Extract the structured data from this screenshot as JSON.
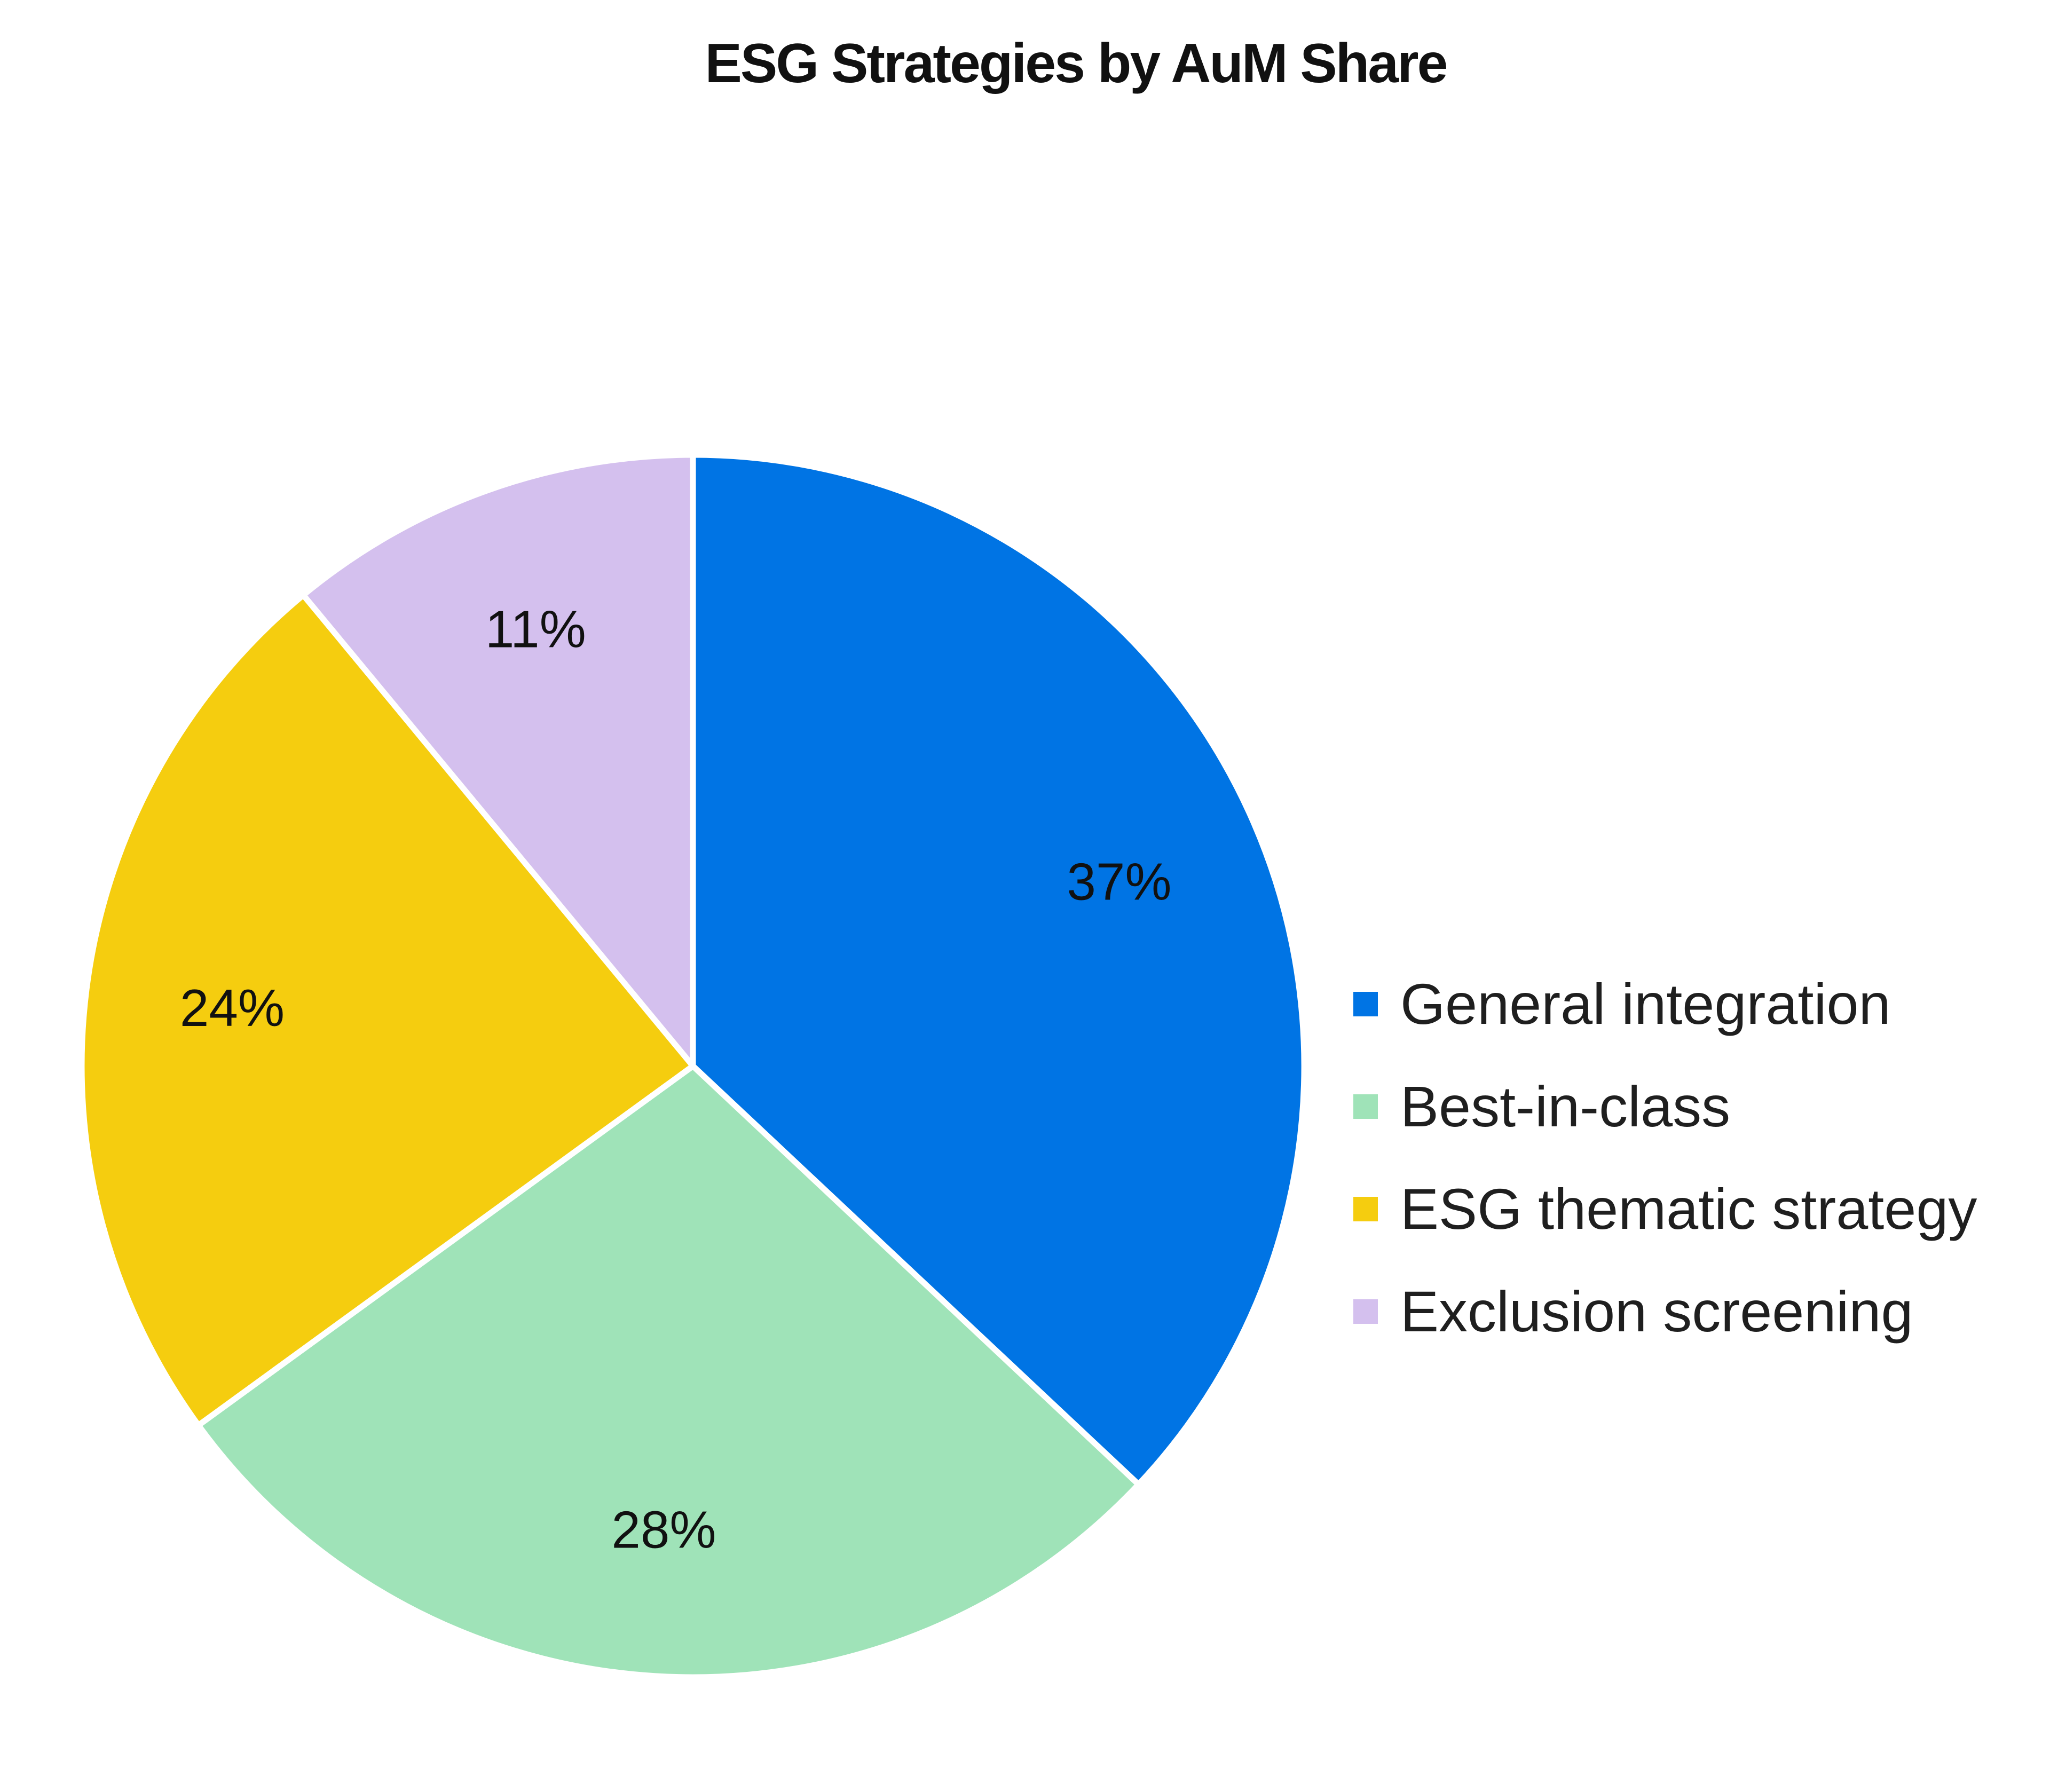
{
  "chart_data": {
    "type": "pie",
    "title": "ESG Strategies by AuM Share",
    "legend_position": "right",
    "start_angle_deg": 0,
    "direction": "clockwise",
    "series": [
      {
        "category": "General integration",
        "value": 37,
        "label": "37%",
        "color": "#0074E4"
      },
      {
        "category": "Best-in-class",
        "value": 28,
        "label": "28%",
        "color": "#9FE3B8"
      },
      {
        "category": "ESG thematic strategy",
        "value": 24,
        "label": "24%",
        "color": "#F5CD0F"
      },
      {
        "category": "Exclusion screening",
        "value": 11,
        "label": "11%",
        "color": "#D4C0EE"
      }
    ]
  }
}
